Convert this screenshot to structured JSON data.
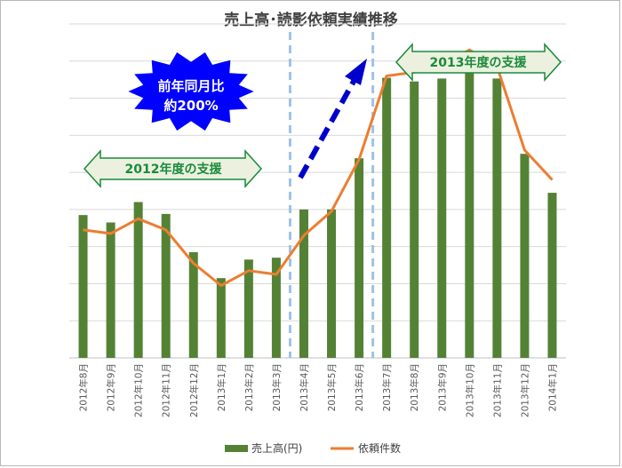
{
  "chart_data": {
    "type": "bar",
    "title": "売上高･読影依頼実績推移",
    "categories": [
      "2012年8月",
      "2012年9月",
      "2012年10月",
      "2012年11月",
      "2012年12月",
      "2013年1月",
      "2013年2月",
      "2013年3月",
      "2013年4月",
      "2013年5月",
      "2013年6月",
      "2013年7月",
      "2013年8月",
      "2013年9月",
      "2013年10月",
      "2013年11月",
      "2013年12月",
      "2014年1月"
    ],
    "series": [
      {
        "name": "売上高(円)",
        "kind": "bar",
        "color": "#548235",
        "values": [
          38.5,
          36.5,
          42.0,
          38.8,
          28.5,
          21.5,
          26.5,
          27.0,
          40.0,
          40.0,
          53.8,
          75.5,
          74.5,
          75.3,
          80.0,
          75.3,
          55.0,
          44.5
        ]
      },
      {
        "name": "依頼件数",
        "kind": "line",
        "color": "#ed7d31",
        "values": [
          34.5,
          33.5,
          37.5,
          34.5,
          25.5,
          19.5,
          23.5,
          22.5,
          33.0,
          39.5,
          53.5,
          76.0,
          77.0,
          79.0,
          83.0,
          78.5,
          56.0,
          48.0
        ]
      }
    ],
    "ylim": [
      0,
      90
    ],
    "grid": true,
    "legend": "bottom"
  },
  "annotations": {
    "arrow_2012": "2012年度の支援",
    "arrow_2013": "2013年度の支援",
    "burst_line1": "前年同月比",
    "burst_line2": "約200%"
  },
  "colors": {
    "arrow_fill": "#ebf1de",
    "arrow_stroke": "#1a8a3c",
    "burst_fill": "#0000ff",
    "trend_arrow": "#0000cc",
    "divider": "#9dc3e6"
  }
}
